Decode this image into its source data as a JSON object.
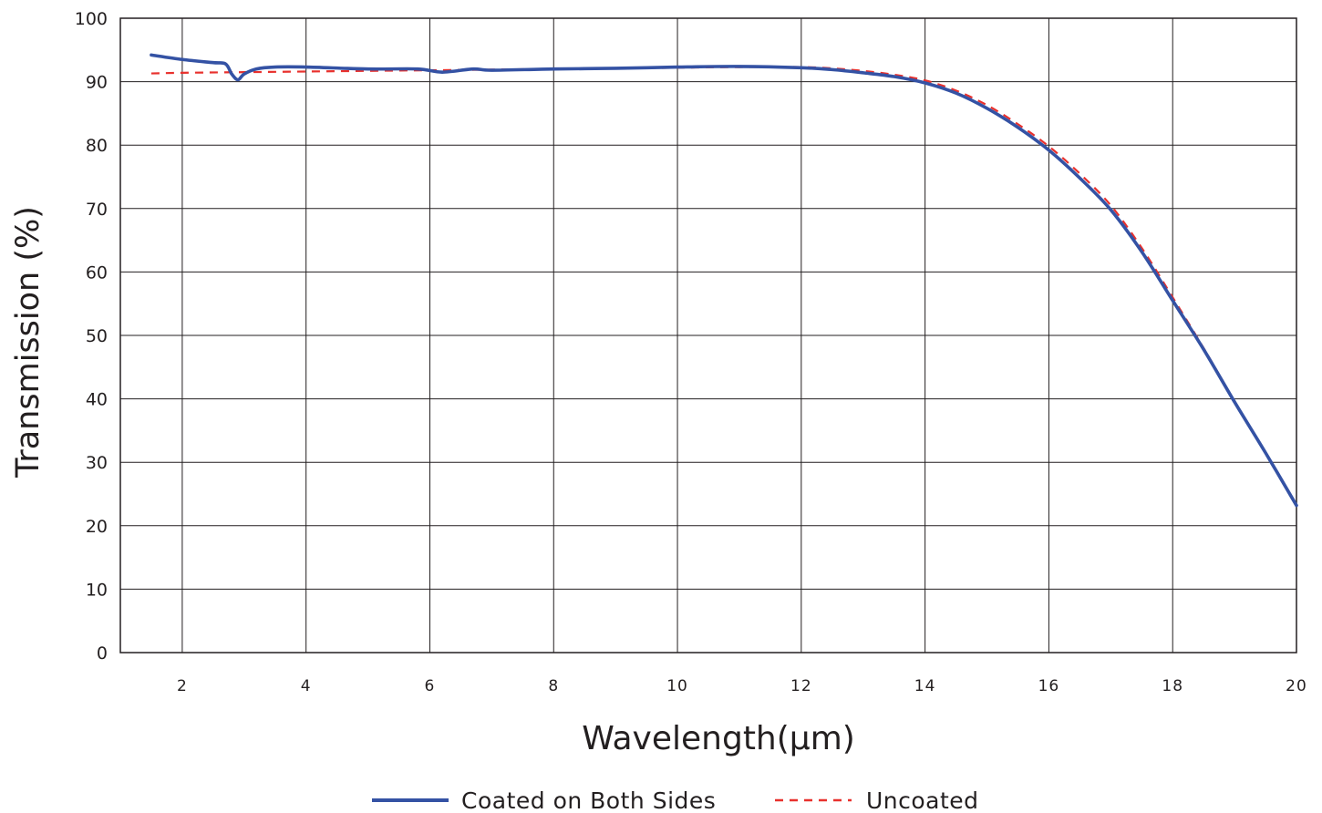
{
  "chart_data": {
    "type": "line",
    "title": "",
    "xlabel": "Wavelength(μm)",
    "ylabel": "Transmission (%)",
    "xlim": [
      1,
      20
    ],
    "ylim": [
      0,
      100
    ],
    "xticks": [
      2,
      4,
      6,
      8,
      10,
      12,
      14,
      16,
      18,
      20
    ],
    "yticks": [
      0,
      10,
      20,
      30,
      40,
      50,
      60,
      70,
      80,
      90,
      100
    ],
    "grid": true,
    "legend_position": "bottom-center",
    "series": [
      {
        "name": "Coated on Both Sides",
        "color": "#3452a4",
        "style": "solid",
        "x": [
          1.5,
          2.0,
          2.5,
          2.7,
          2.8,
          2.9,
          3.0,
          3.2,
          3.5,
          4.0,
          5.0,
          5.8,
          6.2,
          6.7,
          7.0,
          8.0,
          9.0,
          10.0,
          11.0,
          12.0,
          12.5,
          13.0,
          13.5,
          14.0,
          14.5,
          15.0,
          15.5,
          16.0,
          16.5,
          17.0,
          17.5,
          18.0,
          18.5,
          19.0,
          19.5,
          20.0
        ],
        "y": [
          94.2,
          93.5,
          93.0,
          92.8,
          91.2,
          90.3,
          91.2,
          92.0,
          92.3,
          92.3,
          92.0,
          92.0,
          91.5,
          92.0,
          91.8,
          92.0,
          92.1,
          92.3,
          92.4,
          92.2,
          91.9,
          91.4,
          90.8,
          89.8,
          88.2,
          85.8,
          82.8,
          79.2,
          74.8,
          69.8,
          63.2,
          55.5,
          47.8,
          39.5,
          31.5,
          23.2
        ]
      },
      {
        "name": "Uncoated",
        "color": "#e8312d",
        "style": "dashed",
        "x": [
          1.5,
          2.0,
          3.0,
          4.0,
          5.0,
          6.0,
          7.0,
          8.0,
          9.0,
          10.0,
          11.0,
          12.0,
          12.5,
          13.0,
          13.5,
          14.0,
          14.5,
          15.0,
          15.5,
          16.0,
          16.5,
          17.0,
          17.5,
          18.0,
          18.5,
          19.0,
          19.5,
          20.0
        ],
        "y": [
          91.3,
          91.4,
          91.5,
          91.6,
          91.7,
          91.8,
          91.9,
          92.0,
          92.1,
          92.2,
          92.3,
          92.3,
          92.1,
          91.7,
          91.1,
          90.2,
          88.6,
          86.3,
          83.3,
          79.8,
          75.5,
          70.5,
          63.8,
          56.0,
          48.0,
          39.6,
          31.5,
          23.2
        ]
      }
    ]
  }
}
